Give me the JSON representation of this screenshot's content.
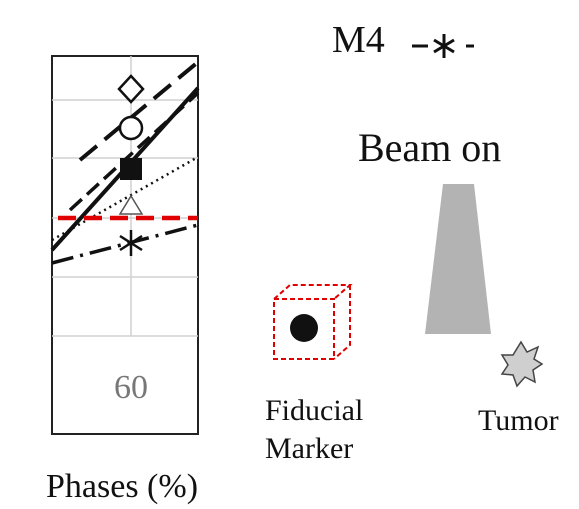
{
  "legend": {
    "m4_label": "M4",
    "m4_marker": "-*-"
  },
  "diagram": {
    "beam_label": "Beam on",
    "fiducial_line1": "Fiducial",
    "fiducial_line2": "Marker",
    "tumor_label": "Tumor"
  },
  "chart_data": {
    "type": "line",
    "xlabel": "Phases (%)",
    "x_ticks": [
      "60"
    ],
    "grid": true,
    "series": [
      {
        "name": "M4",
        "marker": "asterisk",
        "style": "dash-dot",
        "color": "#111111"
      }
    ],
    "visible_markers": [
      "diamond",
      "circle",
      "filled-square",
      "triangle",
      "asterisk"
    ],
    "reference_line": {
      "style": "dashed",
      "color": "#e00000"
    }
  }
}
